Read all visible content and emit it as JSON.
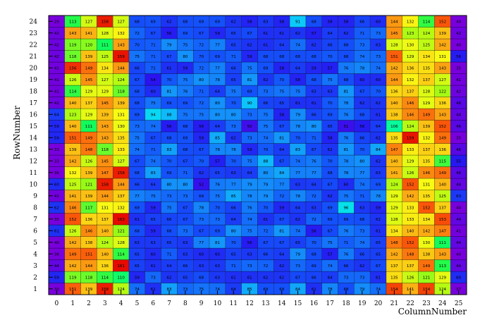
{
  "chart_data": {
    "type": "heatmap",
    "title": "",
    "xlabel": "ColumnNumber",
    "ylabel": "RowNumber",
    "x_ticks": [
      0,
      1,
      2,
      3,
      4,
      5,
      6,
      7,
      8,
      9,
      10,
      11,
      12,
      13,
      14,
      15,
      16,
      17,
      18,
      19,
      20,
      21,
      22,
      23,
      24,
      25
    ],
    "y_ticks": [
      1,
      2,
      3,
      4,
      5,
      6,
      7,
      8,
      9,
      10,
      11,
      12,
      13,
      14,
      15,
      16,
      17,
      18,
      19,
      20,
      21,
      22,
      23,
      24
    ],
    "xlim": [
      0,
      25
    ],
    "ylim": [
      1,
      24
    ],
    "colormap": "rainbow (purple=low, blue, cyan, green, yellow, orange, red=high)",
    "value_range": [
      40,
      160
    ],
    "grid": "dotted cell borders",
    "rows": [
      {
        "row": 1,
        "values": [
          30,
          151,
          139,
          158,
          124,
          74,
          61,
          83,
          73,
          75,
          74,
          64,
          85,
          69,
          69,
          84,
          61,
          78,
          68,
          79,
          74,
          154,
          141,
          154,
          124,
          37
        ]
      },
      {
        "row": 2,
        "values": [
          59,
          119,
          118,
          114,
          110,
          59,
          73,
          62,
          65,
          68,
          63,
          61,
          61,
          62,
          62,
          67,
          66,
          64,
          73,
          73,
          61,
          135,
          126,
          121,
          129,
          60
        ]
      },
      {
        "row": 3,
        "values": [
          44,
          142,
          144,
          136,
          161,
          65,
          61,
          64,
          66,
          63,
          63,
          71,
          73,
          72,
          62,
          73,
          69,
          74,
          66,
          62,
          67,
          137,
          137,
          149,
          113,
          44
        ]
      },
      {
        "row": 4,
        "values": [
          38,
          149,
          151,
          140,
          114,
          65,
          60,
          71,
          63,
          60,
          60,
          65,
          63,
          66,
          64,
          79,
          68,
          57,
          76,
          66,
          65,
          142,
          148,
          138,
          143,
          40
        ]
      },
      {
        "row": 5,
        "values": [
          40,
          142,
          138,
          124,
          128,
          63,
          63,
          65,
          63,
          77,
          81,
          70,
          56,
          67,
          67,
          65,
          70,
          75,
          71,
          74,
          65,
          148,
          152,
          130,
          111,
          44
        ]
      },
      {
        "row": 6,
        "values": [
          61,
          126,
          146,
          140,
          121,
          68,
          59,
          68,
          73,
          67,
          69,
          80,
          75,
          72,
          81,
          74,
          56,
          67,
          76,
          73,
          61,
          134,
          140,
          142,
          147,
          41
        ]
      },
      {
        "row": 7,
        "values": [
          35,
          152,
          136,
          137,
          163,
          61,
          65,
          66,
          67,
          73,
          73,
          64,
          74,
          61,
          67,
          62,
          72,
          69,
          69,
          68,
          62,
          128,
          133,
          134,
          153,
          44
        ]
      },
      {
        "row": 8,
        "values": [
          62,
          146,
          117,
          131,
          132,
          69,
          59,
          75,
          67,
          78,
          70,
          66,
          76,
          70,
          59,
          64,
          63,
          69,
          96,
          63,
          59,
          129,
          133,
          152,
          137,
          40
        ]
      },
      {
        "row": 9,
        "values": [
          41,
          141,
          139,
          144,
          137,
          77,
          75,
          73,
          73,
          69,
          75,
          85,
          78,
          79,
          72,
          78,
          72,
          62,
          75,
          71,
          78,
          129,
          142,
          135,
          125,
          63
        ]
      },
      {
        "row": 10,
        "values": [
          60,
          125,
          121,
          158,
          144,
          66,
          64,
          80,
          80,
          52,
          76,
          77,
          79,
          79,
          77,
          63,
          64,
          67,
          60,
          74,
          69,
          124,
          152,
          131,
          140,
          44
        ]
      },
      {
        "row": 11,
        "values": [
          36,
          132,
          139,
          147,
          158,
          68,
          83,
          69,
          71,
          62,
          65,
          63,
          64,
          80,
          84,
          77,
          77,
          68,
          78,
          77,
          63,
          141,
          126,
          146,
          149,
          46
        ]
      },
      {
        "row": 12,
        "values": [
          33,
          142,
          126,
          145,
          127,
          67,
          74,
          70,
          67,
          70,
          57,
          70,
          75,
          88,
          67,
          74,
          76,
          70,
          78,
          80,
          62,
          140,
          129,
          135,
          115,
          55
        ]
      },
      {
        "row": 13,
        "values": [
          33,
          139,
          148,
          118,
          133,
          74,
          71,
          83,
          68,
          67,
          78,
          78,
          59,
          70,
          64,
          83,
          67,
          62,
          81,
          70,
          84,
          147,
          133,
          137,
          136,
          46
        ]
      },
      {
        "row": 14,
        "values": [
          59,
          151,
          149,
          143,
          135,
          75,
          67,
          68,
          69,
          59,
          85,
          62,
          73,
          74,
          81,
          70,
          71,
          58,
          76,
          66,
          62,
          135,
          159,
          132,
          149,
          35
        ]
      },
      {
        "row": 15,
        "values": [
          59,
          140,
          111,
          143,
          130,
          73,
          74,
          56,
          68,
          56,
          64,
          73,
          50,
          75,
          67,
          78,
          80,
          65,
          51,
          56,
          64,
          106,
          124,
          139,
          152,
          46
        ]
      },
      {
        "row": 16,
        "values": [
          64,
          123,
          129,
          139,
          131,
          69,
          94,
          88,
          75,
          75,
          80,
          80,
          73,
          75,
          58,
          79,
          66,
          69,
          76,
          68,
          61,
          138,
          146,
          149,
          143,
          44
        ]
      },
      {
        "row": 17,
        "values": [
          42,
          140,
          137,
          145,
          139,
          68,
          75,
          69,
          69,
          72,
          80,
          70,
          90,
          66,
          65,
          61,
          61,
          70,
          78,
          62,
          62,
          140,
          146,
          129,
          136,
          46
        ]
      },
      {
        "row": 18,
        "values": [
          41,
          114,
          129,
          129,
          118,
          68,
          60,
          81,
          76,
          71,
          64,
          75,
          69,
          73,
          75,
          75,
          63,
          63,
          81,
          67,
          70,
          136,
          137,
          128,
          122,
          42
        ]
      },
      {
        "row": 19,
        "values": [
          41,
          126,
          145,
          127,
          124,
          67,
          54,
          70,
          75,
          80,
          78,
          65,
          81,
          62,
          70,
          58,
          68,
          75,
          68,
          60,
          60,
          144,
          132,
          137,
          127,
          41
        ]
      },
      {
        "row": 20,
        "values": [
          41,
          156,
          149,
          134,
          144,
          66,
          71,
          61,
          59,
          72,
          77,
          66,
          75,
          69,
          58,
          64,
          59,
          57,
          76,
          78,
          74,
          142,
          136,
          135,
          143,
          35
        ]
      },
      {
        "row": 21,
        "values": [
          42,
          118,
          139,
          125,
          159,
          75,
          71,
          67,
          80,
          70,
          69,
          71,
          59,
          68,
          68,
          68,
          68,
          70,
          68,
          74,
          73,
          151,
          129,
          134,
          131,
          56
        ]
      },
      {
        "row": 22,
        "values": [
          42,
          119,
          120,
          111,
          143,
          70,
          71,
          79,
          75,
          72,
          77,
          65,
          62,
          61,
          64,
          74,
          62,
          66,
          68,
          73,
          63,
          128,
          130,
          125,
          142,
          40
        ]
      },
      {
        "row": 23,
        "values": [
          42,
          143,
          141,
          128,
          132,
          72,
          67,
          56,
          69,
          67,
          59,
          65,
          67,
          61,
          61,
          62,
          57,
          64,
          62,
          71,
          73,
          145,
          123,
          124,
          139,
          42
        ]
      },
      {
        "row": 24,
        "values": [
          29,
          113,
          127,
          158,
          127,
          68,
          69,
          62,
          68,
          69,
          69,
          62,
          58,
          63,
          58,
          91,
          68,
          58,
          58,
          66,
          60,
          144,
          132,
          114,
          152,
          40
        ]
      }
    ]
  }
}
